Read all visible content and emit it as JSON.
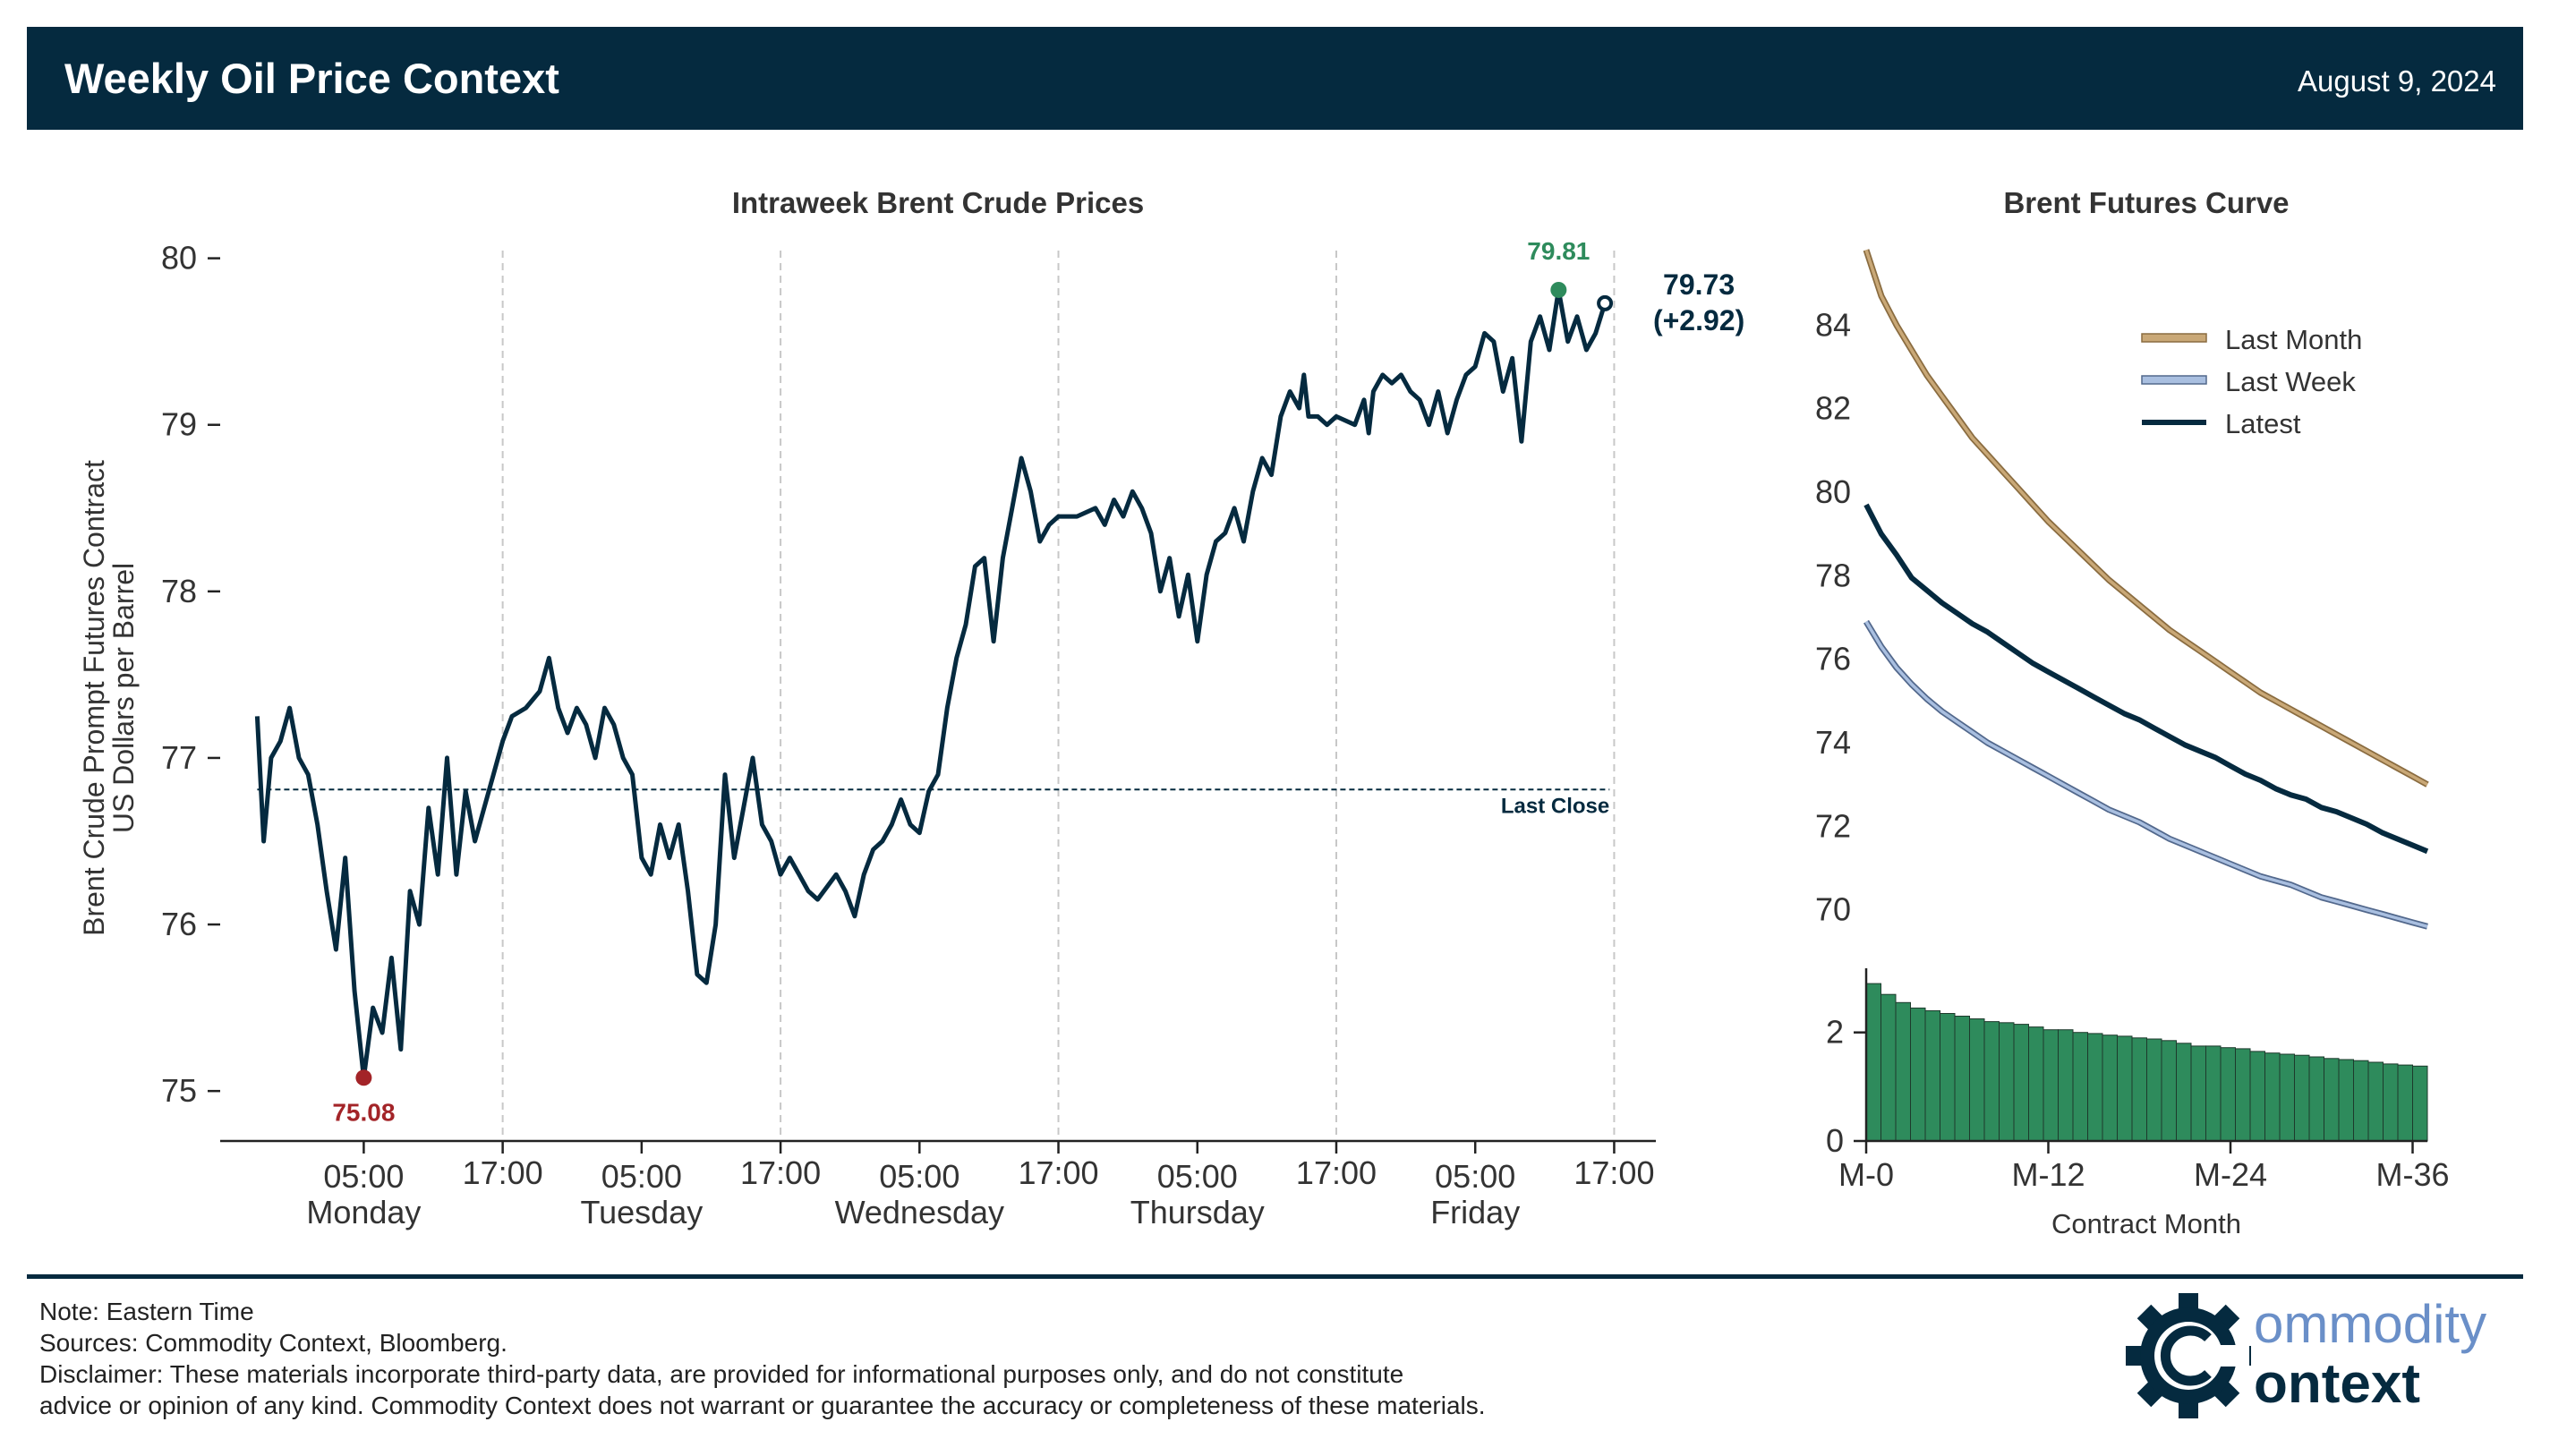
{
  "header": {
    "title": "Weekly Oil Price Context",
    "date": "August 9, 2024"
  },
  "colors": {
    "navy": "#052a3f",
    "last_month": "#c9a877",
    "last_week": "#a9bfe0",
    "high": "#2e8b5c",
    "low": "#a32428",
    "spread": "#2e8b5c"
  },
  "chart_data": [
    {
      "type": "line",
      "title": "Intraweek Brent Crude Prices",
      "ylabel": "Brent Crude Prompt Futures Contract\nUS Dollars per Barrel",
      "ylabel_lines": [
        "Brent Crude Prompt Futures Contract",
        "US Dollars per Barrel"
      ],
      "ylim": [
        74.7,
        80.1
      ],
      "yticks": [
        75,
        76,
        77,
        78,
        79,
        80
      ],
      "xlim_hours": [
        -15.5,
        139.5
      ],
      "xticks": [
        {
          "h": 0,
          "time": "05:00",
          "day": "Monday"
        },
        {
          "h": 15,
          "time": "17:00",
          "day": ""
        },
        {
          "h": 30,
          "time": "05:00",
          "day": "Tuesday"
        },
        {
          "h": 45,
          "time": "17:00",
          "day": ""
        },
        {
          "h": 60,
          "time": "05:00",
          "day": "Wednesday"
        },
        {
          "h": 75,
          "time": "17:00",
          "day": ""
        },
        {
          "h": 90,
          "time": "05:00",
          "day": "Thursday"
        },
        {
          "h": 105,
          "time": "17:00",
          "day": ""
        },
        {
          "h": 120,
          "time": "05:00",
          "day": "Friday"
        },
        {
          "h": 135,
          "time": "17:00",
          "day": ""
        }
      ],
      "x_unit": "hours from Monday 05:00 ET",
      "grid_x": true,
      "series": [
        {
          "color": "#052a3f",
          "points": [
            [
              -11.5,
              77.25
            ],
            [
              -10.8,
              76.5
            ],
            [
              -10,
              77.0
            ],
            [
              -9,
              77.1
            ],
            [
              -8,
              77.3
            ],
            [
              -7,
              77.0
            ],
            [
              -6,
              76.9
            ],
            [
              -5,
              76.6
            ],
            [
              -4,
              76.2
            ],
            [
              -3,
              75.85
            ],
            [
              -2,
              76.4
            ],
            [
              -1,
              75.6
            ],
            [
              0,
              75.08
            ],
            [
              1,
              75.5
            ],
            [
              2,
              75.35
            ],
            [
              3,
              75.8
            ],
            [
              4,
              75.25
            ],
            [
              5,
              76.2
            ],
            [
              6,
              76.0
            ],
            [
              7,
              76.7
            ],
            [
              8,
              76.3
            ],
            [
              9,
              77.0
            ],
            [
              10,
              76.3
            ],
            [
              11,
              76.8
            ],
            [
              12,
              76.5
            ],
            [
              13,
              76.7
            ],
            [
              14,
              76.9
            ],
            [
              15,
              77.1
            ],
            [
              16,
              77.25
            ],
            [
              17.5,
              77.3
            ],
            [
              19,
              77.4
            ],
            [
              20,
              77.6
            ],
            [
              21,
              77.3
            ],
            [
              22,
              77.15
            ],
            [
              23,
              77.3
            ],
            [
              24,
              77.2
            ],
            [
              25,
              77.0
            ],
            [
              26,
              77.3
            ],
            [
              27,
              77.2
            ],
            [
              28,
              77.0
            ],
            [
              29,
              76.9
            ],
            [
              30,
              76.4
            ],
            [
              31,
              76.3
            ],
            [
              32,
              76.6
            ],
            [
              33,
              76.4
            ],
            [
              34,
              76.6
            ],
            [
              35,
              76.2
            ],
            [
              36,
              75.7
            ],
            [
              37,
              75.65
            ],
            [
              38,
              76.0
            ],
            [
              39,
              76.9
            ],
            [
              40,
              76.4
            ],
            [
              41,
              76.7
            ],
            [
              42,
              77.0
            ],
            [
              43,
              76.6
            ],
            [
              44,
              76.5
            ],
            [
              45,
              76.3
            ],
            [
              46,
              76.4
            ],
            [
              47,
              76.3
            ],
            [
              48,
              76.2
            ],
            [
              49,
              76.15
            ],
            [
              51,
              76.3
            ],
            [
              52,
              76.2
            ],
            [
              53,
              76.05
            ],
            [
              54,
              76.3
            ],
            [
              55,
              76.45
            ],
            [
              56,
              76.5
            ],
            [
              57,
              76.6
            ],
            [
              58,
              76.75
            ],
            [
              59,
              76.6
            ],
            [
              60,
              76.55
            ],
            [
              61,
              76.8
            ],
            [
              62,
              76.9
            ],
            [
              63,
              77.3
            ],
            [
              64,
              77.6
            ],
            [
              65,
              77.8
            ],
            [
              66,
              78.15
            ],
            [
              67,
              78.2
            ],
            [
              68,
              77.7
            ],
            [
              69,
              78.2
            ],
            [
              70,
              78.5
            ],
            [
              71,
              78.8
            ],
            [
              72,
              78.6
            ],
            [
              73,
              78.3
            ],
            [
              74,
              78.4
            ],
            [
              75,
              78.45
            ],
            [
              77,
              78.45
            ],
            [
              79,
              78.5
            ],
            [
              80,
              78.4
            ],
            [
              81,
              78.55
            ],
            [
              82,
              78.45
            ],
            [
              83,
              78.6
            ],
            [
              84,
              78.5
            ],
            [
              85,
              78.35
            ],
            [
              86,
              78.0
            ],
            [
              87,
              78.2
            ],
            [
              88,
              77.85
            ],
            [
              89,
              78.1
            ],
            [
              90,
              77.7
            ],
            [
              91,
              78.1
            ],
            [
              92,
              78.3
            ],
            [
              93,
              78.35
            ],
            [
              94,
              78.5
            ],
            [
              95,
              78.3
            ],
            [
              96,
              78.6
            ],
            [
              97,
              78.8
            ],
            [
              98,
              78.7
            ],
            [
              99,
              79.05
            ],
            [
              100,
              79.2
            ],
            [
              101,
              79.1
            ],
            [
              101.5,
              79.3
            ],
            [
              102,
              79.05
            ],
            [
              103,
              79.05
            ],
            [
              104,
              79.0
            ],
            [
              105,
              79.05
            ],
            [
              107,
              79.0
            ],
            [
              108,
              79.15
            ],
            [
              108.5,
              78.95
            ],
            [
              109,
              79.2
            ],
            [
              110,
              79.3
            ],
            [
              111,
              79.25
            ],
            [
              112,
              79.3
            ],
            [
              113,
              79.2
            ],
            [
              114,
              79.15
            ],
            [
              115,
              79.0
            ],
            [
              116,
              79.2
            ],
            [
              117,
              78.95
            ],
            [
              118,
              79.15
            ],
            [
              119,
              79.3
            ],
            [
              120,
              79.35
            ],
            [
              121,
              79.55
            ],
            [
              122,
              79.5
            ],
            [
              123,
              79.2
            ],
            [
              124,
              79.4
            ],
            [
              125,
              78.9
            ],
            [
              126,
              79.5
            ],
            [
              127,
              79.65
            ],
            [
              128,
              79.45
            ],
            [
              129,
              79.81
            ],
            [
              130,
              79.5
            ],
            [
              131,
              79.65
            ],
            [
              132,
              79.45
            ],
            [
              133,
              79.55
            ],
            [
              134,
              79.73
            ]
          ]
        }
      ],
      "reference_line": {
        "y": 76.81,
        "label": "Last Close"
      },
      "annotations": [
        {
          "label": "79.81",
          "x": 129,
          "y": 79.81,
          "kind": "high"
        },
        {
          "label": "75.08",
          "x": 0,
          "y": 75.08,
          "kind": "low"
        },
        {
          "label_value": "79.73",
          "label_change": "(+2.92)",
          "x": 134,
          "y": 79.73,
          "kind": "last"
        }
      ]
    },
    {
      "type": "line",
      "title": "Brent Futures Curve",
      "xlabel": "Contract Month",
      "xticks": [
        "M-0",
        "M-12",
        "M-24",
        "M-36"
      ],
      "yticks": [
        70,
        72,
        74,
        76,
        78,
        80,
        82,
        84
      ],
      "ylim": [
        69.5,
        86
      ],
      "legend_position": "upper right",
      "series": [
        {
          "name": "Last Month",
          "color": "#c9a877",
          "values": [
            85.8,
            84.7,
            84.0,
            83.4,
            82.8,
            82.3,
            81.8,
            81.3,
            80.9,
            80.5,
            80.1,
            79.7,
            79.3,
            78.95,
            78.6,
            78.25,
            77.9,
            77.6,
            77.3,
            77.0,
            76.7,
            76.45,
            76.2,
            75.95,
            75.7,
            75.45,
            75.2,
            75.0,
            74.8,
            74.6,
            74.4,
            74.2,
            74.0,
            73.8,
            73.6,
            73.4,
            73.2,
            73.0
          ]
        },
        {
          "name": "Last Week",
          "color": "#a9bfe0",
          "values": [
            76.9,
            76.3,
            75.8,
            75.4,
            75.05,
            74.75,
            74.5,
            74.25,
            74.0,
            73.8,
            73.6,
            73.4,
            73.2,
            73.0,
            72.8,
            72.6,
            72.4,
            72.25,
            72.1,
            71.9,
            71.7,
            71.55,
            71.4,
            71.25,
            71.1,
            70.95,
            70.8,
            70.7,
            70.6,
            70.45,
            70.3,
            70.2,
            70.1,
            70.0,
            69.9,
            69.8,
            69.7,
            69.6
          ]
        },
        {
          "name": "Latest",
          "color": "#052a3f",
          "values": [
            79.7,
            79.0,
            78.5,
            77.95,
            77.65,
            77.35,
            77.1,
            76.85,
            76.65,
            76.4,
            76.15,
            75.9,
            75.7,
            75.5,
            75.3,
            75.1,
            74.9,
            74.7,
            74.55,
            74.35,
            74.15,
            73.95,
            73.8,
            73.65,
            73.45,
            73.25,
            73.1,
            72.9,
            72.75,
            72.65,
            72.45,
            72.35,
            72.2,
            72.05,
            71.85,
            71.7,
            71.55,
            71.4
          ]
        }
      ]
    },
    {
      "type": "bar",
      "title": "",
      "yticks": [
        0,
        2
      ],
      "ylim": [
        0,
        3.05
      ],
      "xticks": [
        "M-0",
        "M-12",
        "M-24",
        "M-36"
      ],
      "xlabel": "Contract Month",
      "color": "#2e8b5c",
      "values": [
        2.9,
        2.7,
        2.55,
        2.45,
        2.4,
        2.35,
        2.3,
        2.25,
        2.2,
        2.18,
        2.15,
        2.1,
        2.05,
        2.05,
        2.0,
        1.98,
        1.95,
        1.93,
        1.9,
        1.88,
        1.85,
        1.8,
        1.75,
        1.75,
        1.72,
        1.7,
        1.65,
        1.62,
        1.6,
        1.58,
        1.55,
        1.52,
        1.5,
        1.48,
        1.45,
        1.42,
        1.4,
        1.38
      ]
    }
  ],
  "footer": {
    "note": "Note: Eastern Time",
    "sources": "Sources: Commodity Context, Bloomberg.",
    "disclaimer1": "Disclaimer: These materials incorporate third-party data, are provided for informational purposes only, and do not constitute",
    "disclaimer2": "advice or opinion of any kind. Commodity Context does not warrant or guarantee the accuracy or completeness of these materials."
  },
  "logo": {
    "line1": "ommodity",
    "line2": "ontext",
    "icon": "gear-c-icon"
  }
}
